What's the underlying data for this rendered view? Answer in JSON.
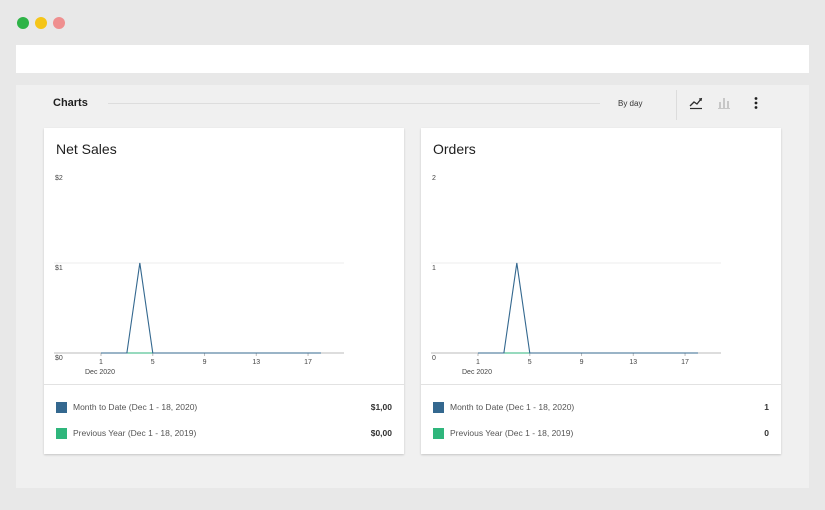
{
  "window": {
    "dots": [
      {
        "name": "green",
        "color": "#2eb347"
      },
      {
        "name": "yellow",
        "color": "#f5c518"
      },
      {
        "name": "red",
        "color": "#ef8f8f"
      }
    ]
  },
  "section": {
    "title": "Charts",
    "interval_label": "By day",
    "icons": [
      "line-chart-icon",
      "bar-chart-icon",
      "more-vertical-icon"
    ]
  },
  "colors": {
    "primary_series": "#34688f",
    "secondary_series": "#2fb67c"
  },
  "cards": [
    {
      "title": "Net Sales",
      "y_labels": [
        "$2",
        "$1",
        "$0"
      ],
      "x_labels": [
        "1",
        "5",
        "9",
        "13",
        "17"
      ],
      "x_sublabel": "Dec 2020",
      "legend": [
        {
          "label": "Month to Date (Dec 1 - 18, 2020)",
          "value": "$1,00"
        },
        {
          "label": "Previous Year (Dec 1 - 18, 2019)",
          "value": "$0,00"
        }
      ]
    },
    {
      "title": "Orders",
      "y_labels": [
        "2",
        "1",
        "0"
      ],
      "x_labels": [
        "1",
        "5",
        "9",
        "13",
        "17"
      ],
      "x_sublabel": "Dec 2020",
      "legend": [
        {
          "label": "Month to Date (Dec 1 - 18, 2020)",
          "value": "1"
        },
        {
          "label": "Previous Year (Dec 1 - 18, 2019)",
          "value": "0"
        }
      ]
    }
  ],
  "chart_data": [
    {
      "type": "line",
      "title": "Net Sales",
      "xlabel": "",
      "ylabel": "",
      "ylim": [
        0,
        2
      ],
      "x": [
        1,
        2,
        3,
        4,
        5,
        6,
        7,
        8,
        9,
        10,
        11,
        12,
        13,
        14,
        15,
        16,
        17,
        18
      ],
      "series": [
        {
          "values": [
            0,
            0,
            0,
            1,
            0,
            0,
            0,
            0,
            0,
            0,
            0,
            0,
            0,
            0,
            0,
            0,
            0,
            0
          ]
        },
        {
          "values": [
            0,
            0,
            0,
            0,
            0,
            0,
            0,
            0,
            0,
            0,
            0,
            0,
            0,
            0,
            0,
            0,
            0,
            0
          ]
        }
      ],
      "x_ticks": [
        1,
        5,
        9,
        13,
        17
      ]
    },
    {
      "type": "line",
      "title": "Orders",
      "xlabel": "",
      "ylabel": "",
      "ylim": [
        0,
        2
      ],
      "x": [
        1,
        2,
        3,
        4,
        5,
        6,
        7,
        8,
        9,
        10,
        11,
        12,
        13,
        14,
        15,
        16,
        17,
        18
      ],
      "series": [
        {
          "values": [
            0,
            0,
            0,
            1,
            0,
            0,
            0,
            0,
            0,
            0,
            0,
            0,
            0,
            0,
            0,
            0,
            0,
            0
          ]
        },
        {
          "values": [
            0,
            0,
            0,
            0,
            0,
            0,
            0,
            0,
            0,
            0,
            0,
            0,
            0,
            0,
            0,
            0,
            0,
            0
          ]
        }
      ],
      "x_ticks": [
        1,
        5,
        9,
        13,
        17
      ]
    }
  ]
}
